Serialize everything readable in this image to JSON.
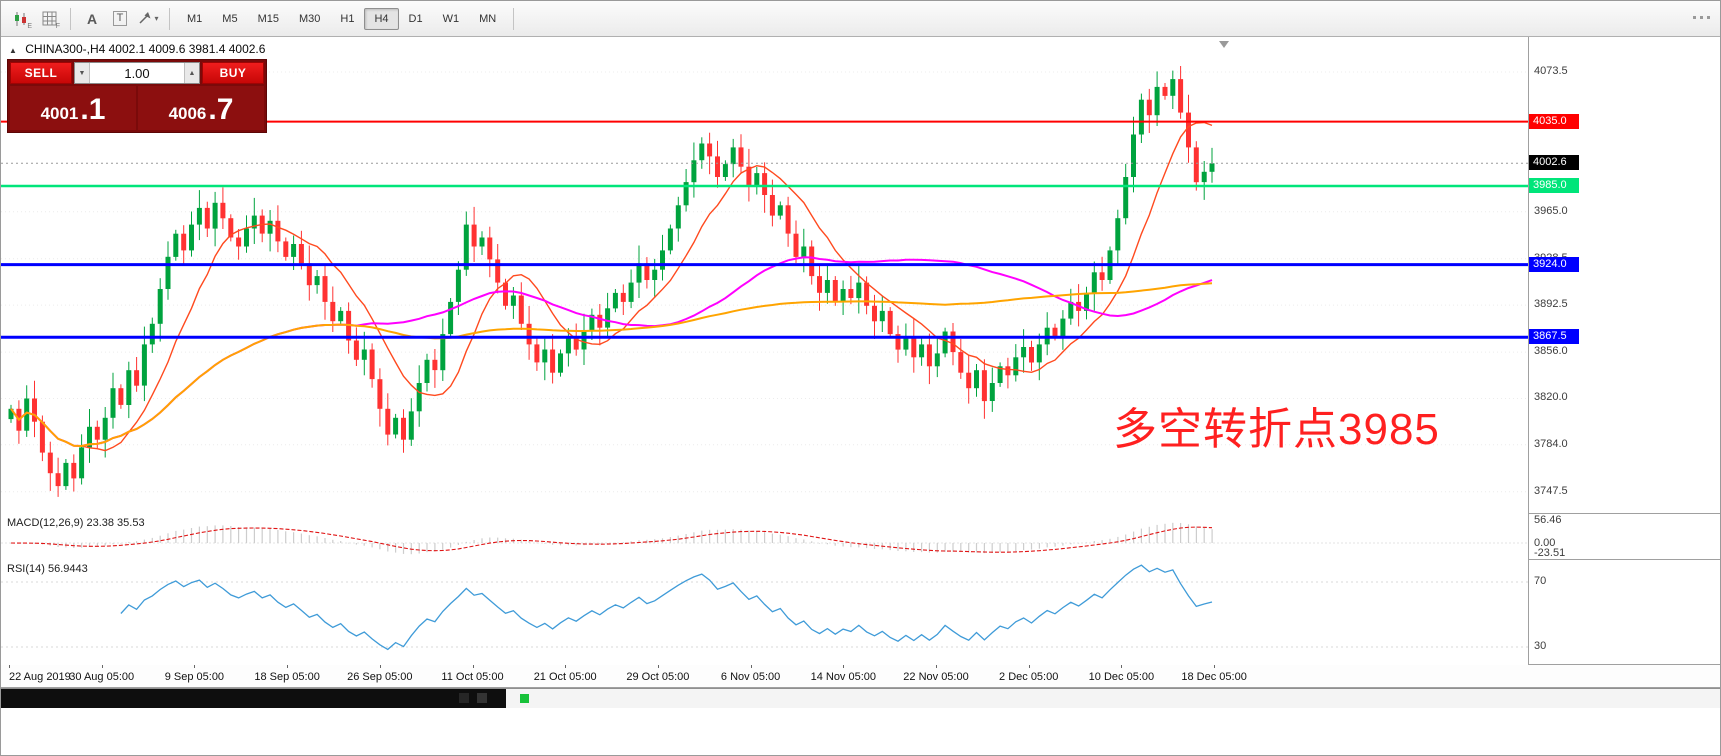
{
  "icons": {
    "collapse": "▲",
    "spin_down": "▼",
    "spin_up": "▲",
    "caret": "▾"
  },
  "toolbar": {
    "icon_glyphs": {
      "e": "E",
      "f": "F",
      "a": "A",
      "t": "T"
    },
    "timeframes": [
      "M1",
      "M5",
      "M15",
      "M30",
      "H1",
      "H4",
      "D1",
      "W1",
      "MN"
    ],
    "active_timeframe": "H4"
  },
  "chart": {
    "header_text": "CHINA300-,H4 4002.1 4009.6 3981.4 4002.6",
    "annotation": {
      "text": "多空转折点3985",
      "color": "#ff2020"
    }
  },
  "trade_panel": {
    "sell_label": "SELL",
    "buy_label": "BUY",
    "volume": "1.00",
    "bid_main": "4001",
    "bid_pips": ".1",
    "ask_main": "4006",
    "ask_pips": ".7"
  },
  "panes": {
    "macd": {
      "label": "MACD(12,26,9) 23.38 35.53",
      "axis": [
        56.46,
        0,
        -23.51
      ]
    },
    "rsi": {
      "label": "RSI(14) 56.9443",
      "axis": [
        70,
        30
      ]
    }
  },
  "chart_data": {
    "type": "candlestick",
    "symbol": "CHINA300-",
    "timeframe": "H4",
    "last_ohlc": {
      "open": 4002.1,
      "high": 4009.6,
      "low": 3981.4,
      "close": 4002.6
    },
    "y_range": [
      3731,
      4098
    ],
    "y_ticks": [
      4073.5,
      3965.0,
      3928.5,
      3892.5,
      3856.0,
      3820.0,
      3784.0,
      3747.5
    ],
    "x_labels": [
      "22 Aug 2019",
      "30 Aug 05:00",
      "9 Sep 05:00",
      "18 Sep 05:00",
      "26 Sep 05:00",
      "11 Oct 05:00",
      "21 Oct 05:00",
      "29 Oct 05:00",
      "6 Nov 05:00",
      "14 Nov 05:00",
      "22 Nov 05:00",
      "2 Dec 05:00",
      "10 Dec 05:00",
      "18 Dec 05:00"
    ],
    "up_color": "#00a33e",
    "down_color": "#ff3232",
    "closes": [
      3812,
      3795,
      3820,
      3802,
      3778,
      3762,
      3752,
      3770,
      3758,
      3782,
      3798,
      3788,
      3805,
      3828,
      3815,
      3842,
      3830,
      3862,
      3878,
      3905,
      3930,
      3948,
      3935,
      3955,
      3968,
      3952,
      3972,
      3960,
      3945,
      3938,
      3952,
      3962,
      3948,
      3958,
      3942,
      3930,
      3940,
      3925,
      3908,
      3915,
      3895,
      3880,
      3888,
      3865,
      3850,
      3858,
      3835,
      3812,
      3792,
      3805,
      3788,
      3810,
      3832,
      3850,
      3842,
      3870,
      3895,
      3920,
      3955,
      3938,
      3945,
      3928,
      3910,
      3892,
      3900,
      3878,
      3862,
      3848,
      3858,
      3840,
      3855,
      3868,
      3858,
      3872,
      3885,
      3875,
      3890,
      3902,
      3895,
      3910,
      3925,
      3912,
      3920,
      3935,
      3952,
      3970,
      3988,
      4005,
      4018,
      4008,
      3992,
      4002,
      4015,
      4000,
      3985,
      3995,
      3978,
      3962,
      3970,
      3948,
      3930,
      3938,
      3915,
      3902,
      3912,
      3895,
      3905,
      3898,
      3910,
      3892,
      3880,
      3888,
      3870,
      3858,
      3868,
      3852,
      3862,
      3845,
      3855,
      3872,
      3856,
      3840,
      3828,
      3842,
      3818,
      3832,
      3845,
      3838,
      3852,
      3860,
      3848,
      3862,
      3875,
      3868,
      3882,
      3895,
      3888,
      3902,
      3918,
      3912,
      3935,
      3960,
      3992,
      4025,
      4052,
      4040,
      4062,
      4055,
      4068,
      4042,
      4015,
      3988,
      3996,
      4002.6
    ],
    "moving_averages": [
      {
        "period": 10,
        "color": "#ff4a1f",
        "width": 1.4
      },
      {
        "period": 45,
        "color": "#ff00ff",
        "width": 2
      },
      {
        "period": 120,
        "color": "#ffa400",
        "width": 2
      }
    ],
    "horizontal_lines": [
      {
        "price": 4035.0,
        "color": "#ff0000",
        "width": 2
      },
      {
        "price": 3985.0,
        "color": "#00e57a",
        "width": 2.5
      },
      {
        "price": 3924.0,
        "color": "#0000ff",
        "width": 3
      },
      {
        "price": 3867.5,
        "color": "#0000ff",
        "width": 3
      }
    ],
    "current_price_label": {
      "price": 4002.6,
      "bg": "#000000",
      "fg": "#ffffff"
    },
    "indicators": [
      {
        "name": "MACD",
        "params": "12,26,9",
        "macd": 23.38,
        "signal": 35.53
      },
      {
        "name": "RSI",
        "params": "14",
        "value": 56.9443
      }
    ]
  }
}
